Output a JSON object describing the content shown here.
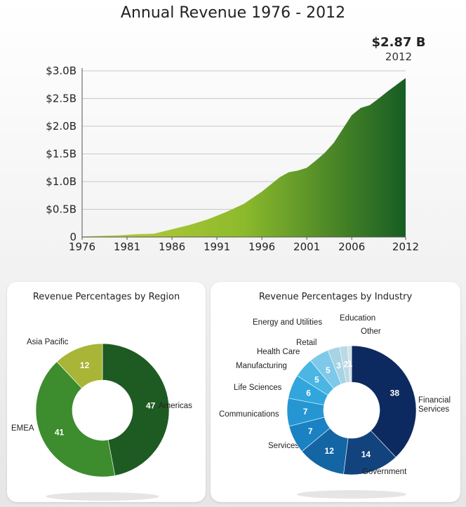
{
  "chart_data": [
    {
      "type": "area",
      "title": "Annual Revenue 1976 - 2012",
      "x": [
        1976,
        1978,
        1980,
        1982,
        1984,
        1986,
        1988,
        1990,
        1992,
        1994,
        1996,
        1998,
        1999,
        2000,
        2001,
        2002,
        2003,
        2004,
        2005,
        2006,
        2007,
        2008,
        2009,
        2010,
        2011,
        2012
      ],
      "y": [
        0.01,
        0.02,
        0.03,
        0.05,
        0.06,
        0.14,
        0.22,
        0.32,
        0.45,
        0.6,
        0.82,
        1.08,
        1.17,
        1.2,
        1.25,
        1.38,
        1.52,
        1.7,
        1.95,
        2.2,
        2.33,
        2.38,
        2.5,
        2.63,
        2.75,
        2.87
      ],
      "xticks": [
        "1976",
        "1981",
        "1986",
        "1991",
        "1996",
        "2001",
        "2006",
        "2012"
      ],
      "yticks": [
        "0",
        "$0.5B",
        "$1.0B",
        "$1.5B",
        "$2.0B",
        "$2.5B",
        "$3.0B"
      ],
      "ylim": [
        0,
        3.0
      ],
      "xlim": [
        1976,
        2012
      ],
      "grid": true,
      "callout": {
        "value": "$2.87 B",
        "year": "2012"
      },
      "colors": {
        "start": "#c3cf3b",
        "mid": "#8cba2c",
        "end": "#165d23"
      }
    },
    {
      "type": "pie",
      "title": "Revenue Percentages by Region",
      "donut": true,
      "slices": [
        {
          "label": "Americas",
          "value": 47,
          "color": "#1e5b22"
        },
        {
          "label": "EMEA",
          "value": 41,
          "color": "#3d8c2e"
        },
        {
          "label": "Asia Pacific",
          "value": 12,
          "color": "#a8b536"
        }
      ]
    },
    {
      "type": "pie",
      "title": "Revenue Percentages by Industry",
      "donut": true,
      "slices": [
        {
          "label": "Financial Services",
          "value": 38,
          "color": "#0d2a60"
        },
        {
          "label": "Government",
          "value": 14,
          "color": "#12437d"
        },
        {
          "label": "Services",
          "value": 12,
          "color": "#1465a4"
        },
        {
          "label": "Communications",
          "value": 7,
          "color": "#1a81c3"
        },
        {
          "label": "Life Sciences",
          "value": 7,
          "color": "#2596d2"
        },
        {
          "label": "Manufacturing",
          "value": 6,
          "color": "#30a6dc"
        },
        {
          "label": "Health Care",
          "value": 5,
          "color": "#4bb6e3"
        },
        {
          "label": "Retail",
          "value": 5,
          "color": "#7ec9e9"
        },
        {
          "label": "Energy and Utilities",
          "value": 3,
          "color": "#a7d3e4"
        },
        {
          "label": "Education",
          "value": 2,
          "color": "#bcd9e3"
        },
        {
          "label": "Other",
          "value": 1,
          "color": "#cfe3ea"
        }
      ]
    }
  ]
}
